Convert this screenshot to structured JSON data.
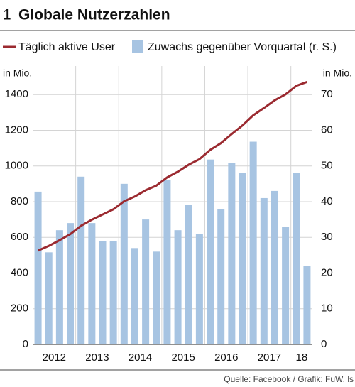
{
  "chart_data": {
    "type": "bar_line",
    "number": "1",
    "title": "Globale Nutzerzahlen",
    "ylabel": "in Mio.",
    "y2label": "in Mio.",
    "source": "Quelle: Facebook / Grafik: FuW, ls",
    "groups": [
      "2012",
      "2013",
      "2014",
      "2015",
      "2016",
      "2017",
      "18"
    ],
    "group_sizes": [
      4,
      4,
      4,
      4,
      4,
      4,
      2
    ],
    "series": [
      {
        "name": "Täglich aktive User",
        "type": "line",
        "color": "#9b2a30",
        "values": [
          526,
          552,
          584,
          618,
          665,
          699,
          728,
          757,
          802,
          829,
          864,
          890,
          936,
          968,
          1007,
          1038,
          1090,
          1128,
          1179,
          1227,
          1284,
          1325,
          1368,
          1401,
          1449,
          1471
        ]
      },
      {
        "name": "Zuwachs gegenüber Vorquartal (r. S.)",
        "type": "bar",
        "axis": "y2",
        "color": "#a7c4e2",
        "values": [
          42.8,
          25.8,
          32,
          34,
          47,
          34,
          29,
          29,
          45,
          27,
          35,
          26,
          46,
          32,
          39,
          31,
          51.8,
          38,
          50.8,
          48,
          56.8,
          41,
          43,
          33,
          48,
          22
        ]
      }
    ],
    "ylim": [
      0,
      1560
    ],
    "yticks": [
      0,
      200,
      400,
      600,
      800,
      1000,
      1200,
      1400
    ],
    "y2lim": [
      0,
      78
    ],
    "y2ticks": [
      0,
      10,
      20,
      30,
      40,
      50,
      60,
      70
    ],
    "grid": true
  }
}
